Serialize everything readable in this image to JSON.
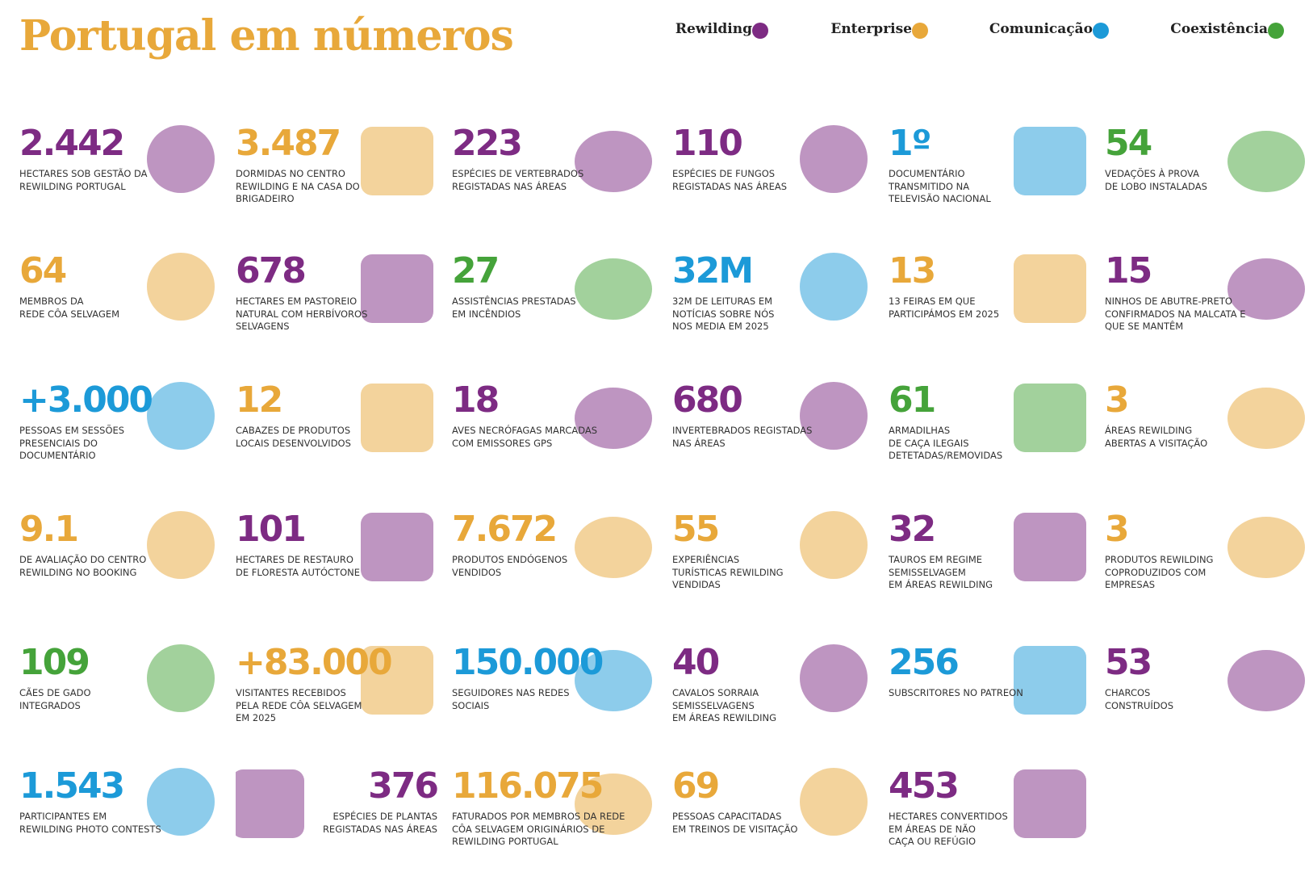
{
  "header": {
    "title": "Portugal em números"
  },
  "legend": [
    {
      "label": "Rewilding",
      "color": "#7d2b83"
    },
    {
      "label": "Enterprise",
      "color": "#e8a83a"
    },
    {
      "label": "Comunicação",
      "color": "#1c9ad8"
    },
    {
      "label": "Coexistência",
      "color": "#45a33a"
    }
  ],
  "items": [
    {
      "number": "2.442",
      "lines": [
        "HECTARES SOB GESTÃO DA",
        "REWILDING PORTUGAL"
      ],
      "category": 0
    },
    {
      "number": "3.487",
      "lines": [
        "DORMIDAS NO CENTRO",
        "REWILDING E NA CASA DO",
        "BRIGADEIRO"
      ],
      "category": 1
    },
    {
      "number": "223",
      "lines": [
        "ESPÉCIES DE VERTEBRADOS",
        "REGISTADAS NAS ÁREAS"
      ],
      "category": 0
    },
    {
      "number": "110",
      "lines": [
        "ESPÉCIES DE FUNGOS",
        "REGISTADAS NAS ÁREAS"
      ],
      "category": 0
    },
    {
      "number": "1º",
      "lines": [
        "DOCUMENTÁRIO",
        "TRANSMITIDO NA",
        "TELEVISÃO NACIONAL"
      ],
      "category": 2
    },
    {
      "number": "54",
      "lines": [
        "VEDAÇÕES À PROVA",
        "DE LOBO INSTALADAS"
      ],
      "category": 3
    },
    {
      "number": "64",
      "lines": [
        "MEMBROS DA",
        "REDE CÔA SELVAGEM"
      ],
      "category": 1
    },
    {
      "number": "678",
      "lines": [
        "HECTARES EM PASTOREIO",
        "NATURAL COM HERBÍVOROS",
        "SELVAGENS"
      ],
      "category": 0
    },
    {
      "number": "27",
      "lines": [
        "ASSISTÊNCIAS PRESTADAS",
        "EM INCÊNDIOS"
      ],
      "category": 3
    },
    {
      "number": "32M",
      "lines": [
        "32M DE LEITURAS EM",
        "NOTÍCIAS SOBRE NÓS",
        "NOS MEDIA EM 2025"
      ],
      "category": 2
    },
    {
      "number": "13",
      "lines": [
        "13 FEIRAS EM QUE",
        "PARTICIPÁMOS EM 2025"
      ],
      "category": 1
    },
    {
      "number": "15",
      "lines": [
        "NINHOS DE ABUTRE-PRETO",
        "CONFIRMADOS NA MALCATA E",
        "QUE SE MANTÊM"
      ],
      "category": 0
    },
    {
      "number": "+3.000",
      "lines": [
        "PESSOAS EM SESSÕES",
        "PRESENCIAIS DO",
        "DOCUMENTÁRIO"
      ],
      "category": 2
    },
    {
      "number": "12",
      "lines": [
        "CABAZES DE PRODUTOS",
        "LOCAIS DESENVOLVIDOS"
      ],
      "category": 1
    },
    {
      "number": "18",
      "lines": [
        "AVES NECRÓFAGAS MARCADAS",
        "COM EMISSORES GPS"
      ],
      "category": 0
    },
    {
      "number": "680",
      "lines": [
        "INVERTEBRADOS REGISTADAS",
        "NAS ÁREAS"
      ],
      "category": 0
    },
    {
      "number": "61",
      "lines": [
        "ARMADILHAS",
        "DE CAÇA ILEGAIS",
        "DETETADAS/REMOVIDAS"
      ],
      "category": 3
    },
    {
      "number": "3",
      "lines": [
        "ÁREAS REWILDING",
        "ABERTAS A VISITAÇÃO"
      ],
      "category": 1
    },
    {
      "number": "9.1",
      "lines": [
        "DE AVALIAÇÃO DO CENTRO",
        "REWILDING NO BOOKING"
      ],
      "category": 1
    },
    {
      "number": "101",
      "lines": [
        "HECTARES DE RESTAURO",
        "DE FLORESTA AUTÓCTONE"
      ],
      "category": 0
    },
    {
      "number": "7.672",
      "lines": [
        "PRODUTOS ENDÓGENOS",
        "VENDIDOS"
      ],
      "category": 1
    },
    {
      "number": "55",
      "lines": [
        "EXPERIÊNCIAS",
        "TURÍSTICAS REWILDING",
        "VENDIDAS"
      ],
      "category": 1
    },
    {
      "number": "32",
      "lines": [
        "TAUROS EM REGIME",
        "SEMISSELVAGEM",
        "EM ÁREAS REWILDING"
      ],
      "category": 0
    },
    {
      "number": "3",
      "lines": [
        "PRODUTOS REWILDING",
        "COPRODUZIDOS COM",
        "EMPRESAS"
      ],
      "category": 1
    },
    {
      "number": "109",
      "lines": [
        "CÃES DE GADO",
        "INTEGRADOS"
      ],
      "category": 3
    },
    {
      "number": "+83.000",
      "lines": [
        "VISITANTES RECEBIDOS",
        "PELA REDE CÔA SELVAGEM",
        "EM 2025"
      ],
      "category": 1
    },
    {
      "number": "150.000",
      "lines": [
        "SEGUIDORES NAS REDES",
        "SOCIAIS"
      ],
      "category": 2
    },
    {
      "number": "40",
      "lines": [
        "CAVALOS SORRAIA",
        "SEMISSELVAGENS",
        "EM ÁREAS REWILDING"
      ],
      "category": 0
    },
    {
      "number": "256",
      "lines": [
        "SUBSCRITORES NO PATREON"
      ],
      "category": 2
    },
    {
      "number": "53",
      "lines": [
        "CHARCOS",
        "CONSTRUÍDOS"
      ],
      "category": 0
    },
    {
      "number": "1.543",
      "lines": [
        "PARTICIPANTES EM",
        "REWILDING PHOTO CONTESTS"
      ],
      "category": 2
    },
    {
      "number": "376",
      "lines": [
        "ESPÉCIES DE PLANTAS",
        "REGISTADAS NAS ÁREAS"
      ],
      "category": 0
    },
    {
      "number": "116.075",
      "lines": [
        "FATURADOS POR MEMBROS DA REDE",
        "CÔA SELVAGEM ORIGINÁRIOS DE",
        "REWILDING PORTUGAL"
      ],
      "category": 1
    },
    {
      "number": "69",
      "lines": [
        "PESSOAS CAPACITADAS",
        "EM TREINOS DE VISITAÇÃO"
      ],
      "category": 1
    },
    {
      "number": "453",
      "lines": [
        "HECTARES CONVERTIDOS",
        "EM ÁREAS DE NÃO",
        "CAÇA OU REFÚGIO"
      ],
      "category": 0
    }
  ]
}
